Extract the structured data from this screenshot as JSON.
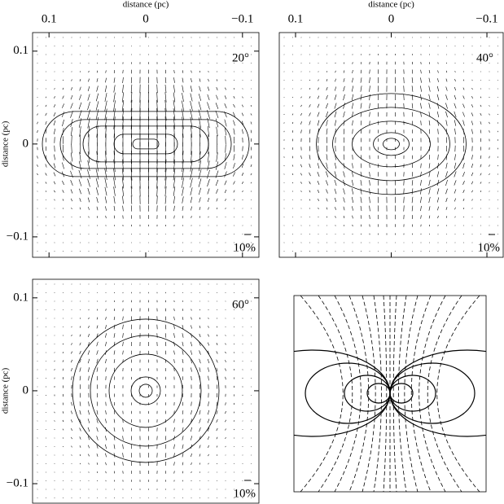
{
  "chart_data": [
    {
      "type": "vector",
      "x_label": "distance (pc)",
      "y_label": "distance (pc)",
      "xlim": [
        0.117,
        -0.117
      ],
      "ylim": [
        -0.122,
        0.12
      ],
      "xticks": [
        0.1,
        0,
        {
          "value": -0.1,
          "label": "−0.1"
        }
      ],
      "yticks": [
        0.1,
        0,
        {
          "value": -0.1,
          "label": "−0.1"
        }
      ],
      "annotation": "20°",
      "scale_label": "10%"
    },
    {
      "type": "vector",
      "x_label": "distance (pc)",
      "xlim": [
        0.117,
        -0.117
      ],
      "ylim": [
        -0.122,
        0.12
      ],
      "xticks": [
        0.1,
        0,
        {
          "value": -0.1,
          "label": "−0.1"
        }
      ],
      "annotation": "40°",
      "scale_label": "10%"
    },
    {
      "type": "vector",
      "y_label": "distance (pc)",
      "xlim": [
        0.117,
        -0.117
      ],
      "ylim": [
        -0.121,
        0.12
      ],
      "yticks": [
        0.1,
        0,
        {
          "value": -0.1,
          "label": "−0.1"
        }
      ],
      "annotation": "60°",
      "scale_label": "10%"
    },
    {
      "type": "diagram"
    }
  ]
}
